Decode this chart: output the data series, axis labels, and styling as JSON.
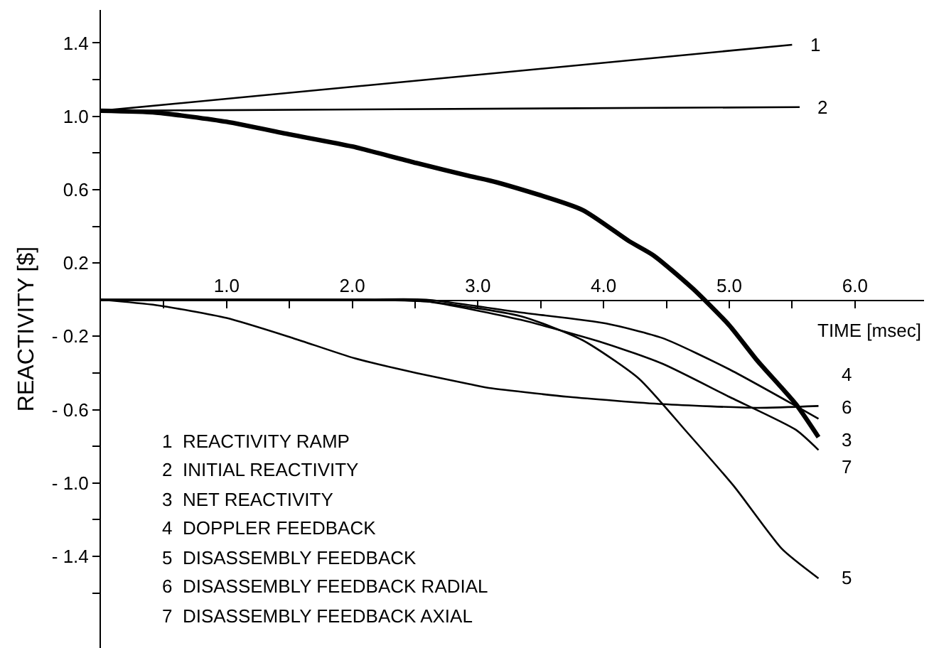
{
  "chart_data": {
    "type": "line",
    "xlabel": "TIME [msec]",
    "ylabel": "REACTIVITY [$]",
    "xlim": [
      0,
      6.55
    ],
    "ylim": [
      -1.9,
      1.58
    ],
    "xticks": [
      {
        "value": 0.5,
        "label": null
      },
      {
        "value": 1,
        "label": "1.0"
      },
      {
        "value": 1.5,
        "label": null
      },
      {
        "value": 2,
        "label": "2.0"
      },
      {
        "value": 2.5,
        "label": null
      },
      {
        "value": 3,
        "label": "3.0"
      },
      {
        "value": 3.5,
        "label": null
      },
      {
        "value": 4,
        "label": "4.0"
      },
      {
        "value": 4.5,
        "label": null
      },
      {
        "value": 5,
        "label": "5.0"
      },
      {
        "value": 5.5,
        "label": null
      },
      {
        "value": 6,
        "label": "6.0"
      }
    ],
    "yticks": [
      {
        "value": -1.6,
        "label": null
      },
      {
        "value": -1.4,
        "label": "- 1.4"
      },
      {
        "value": -1.2,
        "label": null
      },
      {
        "value": -1.0,
        "label": "- 1.0"
      },
      {
        "value": -0.8,
        "label": null
      },
      {
        "value": -0.6,
        "label": "- 0.6"
      },
      {
        "value": -0.4,
        "label": null
      },
      {
        "value": -0.2,
        "label": "- 0.2"
      },
      0.2,
      {
        "value": 0.4,
        "label": null
      },
      0.6,
      {
        "value": 0.8,
        "label": null
      },
      {
        "value": 1,
        "label": "1.0"
      },
      {
        "value": 1.2,
        "label": null
      },
      1.4
    ],
    "legend": false,
    "marker": "none",
    "line_style": "solid",
    "series": [
      {
        "name": "1",
        "color": "#000000",
        "x": [
          0,
          5.5
        ],
        "values": [
          1.03,
          1.39
        ]
      },
      {
        "name": "2",
        "color": "#000000",
        "x": [
          0,
          5.56
        ],
        "values": [
          1.03,
          1.05
        ]
      },
      {
        "name": "3",
        "color": "#000000",
        "x": [
          0,
          0.44,
          1.0,
          1.51,
          2.0,
          2.51,
          2.93,
          3.15,
          3.83,
          4.2,
          4.4,
          4.71,
          5.0,
          5.22,
          5.53,
          5.71
        ],
        "values": [
          1.03,
          1.02,
          0.97,
          0.9,
          0.835,
          0.745,
          0.675,
          0.64,
          0.49,
          0.32,
          0.24,
          0.06,
          -0.14,
          -0.33,
          -0.57,
          -0.75
        ]
      },
      {
        "name": "4",
        "color": "#000000",
        "x": [
          0,
          0.44,
          1.0,
          1.53,
          2.02,
          2.51,
          2.93,
          3.07,
          3.72,
          4.47,
          5.22,
          5.71
        ],
        "values": [
          0,
          -0.03,
          -0.1,
          -0.21,
          -0.32,
          -0.4,
          -0.46,
          -0.48,
          -0.53,
          -0.57,
          -0.59,
          -0.58
        ]
      },
      {
        "name": "5",
        "color": "#000000",
        "x": [
          0,
          2.0,
          2.59,
          3.34,
          3.83,
          4.28,
          4.66,
          5.04,
          5.42,
          5.71
        ],
        "values": [
          0,
          0,
          -0.01,
          -0.09,
          -0.22,
          -0.43,
          -0.72,
          -1.02,
          -1.36,
          -1.52
        ]
      },
      {
        "name": "6",
        "color": "#000000",
        "x": [
          0,
          2.0,
          2.59,
          3.34,
          4.02,
          4.47,
          5.0,
          5.53,
          5.71
        ],
        "values": [
          0,
          0,
          0,
          -0.07,
          -0.13,
          -0.21,
          -0.38,
          -0.58,
          -0.65
        ]
      },
      {
        "name": "7",
        "color": "#000000",
        "x": [
          0,
          2.0,
          2.59,
          3.34,
          4.02,
          4.47,
          5.0,
          5.53,
          5.71
        ],
        "values": [
          0,
          0,
          -0.01,
          -0.11,
          -0.24,
          -0.35,
          -0.53,
          -0.71,
          -0.82
        ]
      }
    ],
    "annotations": [
      "1  REACTIVITY RAMP",
      "2  INITIAL REACTIVITY",
      "3  NET REACTIVITY",
      "4  DOPPLER FEEDBACK",
      "5  DISASSEMBLY FEEDBACK",
      "6  DISASSEMBLY FEEDBACK RADIAL",
      "7  DISASSEMBLY FEEDBACK AXIAL"
    ]
  }
}
